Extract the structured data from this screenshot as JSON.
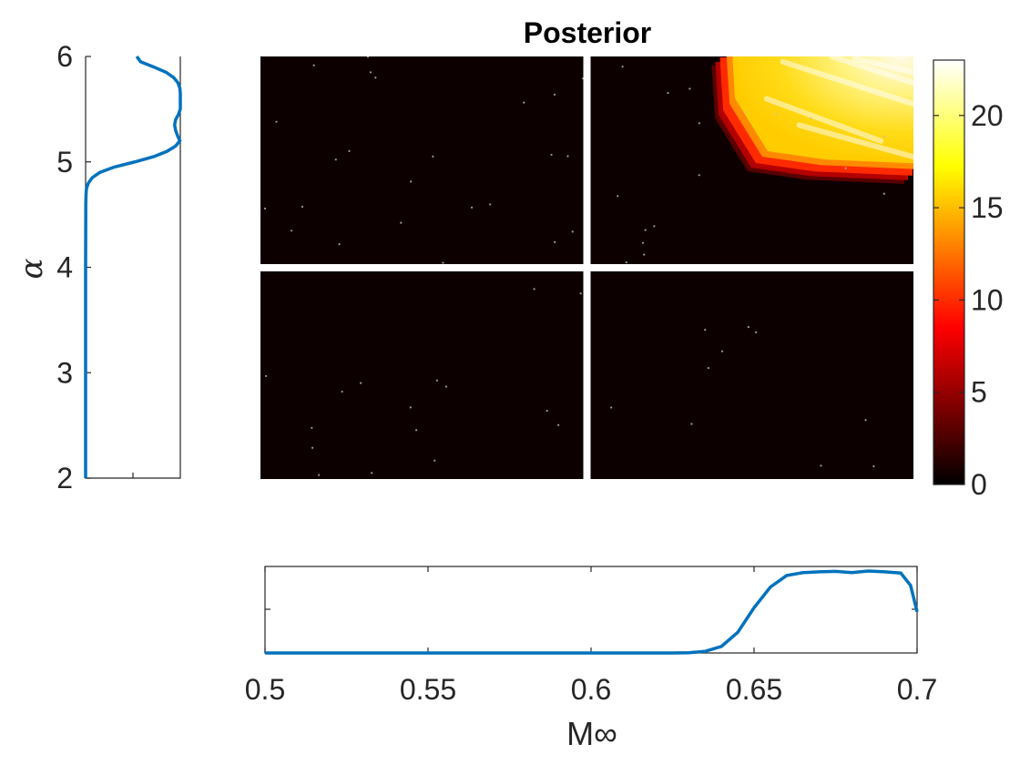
{
  "chart_data": [
    {
      "type": "heatmap",
      "title": "Posterior",
      "xlim": [
        0.5,
        0.7
      ],
      "ylim": [
        2,
        6
      ],
      "colormap": "hot",
      "colorbar": {
        "ticks": [
          0,
          5,
          10,
          15,
          20
        ],
        "tick_labels": [
          "0",
          "5",
          "10",
          "15",
          "20"
        ],
        "range": [
          0,
          23
        ]
      },
      "crosshair": {
        "x": 0.6,
        "y": 4
      },
      "high_region": {
        "description": "posterior mass concentrated in upper-right corner",
        "boundary": [
          [
            0.641,
            6.0
          ],
          [
            0.642,
            5.5
          ],
          [
            0.652,
            5.0
          ],
          [
            0.67,
            4.92
          ],
          [
            0.7,
            4.88
          ]
        ],
        "peak_value": 23
      },
      "background_value": 0
    },
    {
      "type": "line",
      "orientation": "vertical",
      "ylabel": "α",
      "yticks": [
        2,
        3,
        4,
        5,
        6
      ],
      "ytick_labels": [
        "2",
        "3",
        "4",
        "5",
        "6"
      ],
      "ylim": [
        2,
        6
      ],
      "xlim": [
        0,
        1
      ],
      "series": [
        {
          "color": "#0072BD",
          "y": [
            2.0,
            3.0,
            4.0,
            4.6,
            4.7,
            4.75,
            4.8,
            4.85,
            4.9,
            4.95,
            5.0,
            5.05,
            5.1,
            5.15,
            5.2,
            5.25,
            5.3,
            5.35,
            5.4,
            5.45,
            5.5,
            5.55,
            5.6,
            5.65,
            5.7,
            5.75,
            5.8,
            5.85,
            5.9,
            5.95,
            6.0
          ],
          "x": [
            0.0,
            0.0,
            0.0,
            0.002,
            0.005,
            0.01,
            0.03,
            0.07,
            0.15,
            0.3,
            0.52,
            0.72,
            0.86,
            0.95,
            0.995,
            0.97,
            0.95,
            0.94,
            0.95,
            0.98,
            1.0,
            1.0,
            1.0,
            1.0,
            0.995,
            0.975,
            0.93,
            0.85,
            0.72,
            0.58,
            0.54
          ]
        }
      ]
    },
    {
      "type": "line",
      "xlabel": "M∞",
      "xticks": [
        0.5,
        0.55,
        0.6,
        0.65,
        0.7
      ],
      "xtick_labels": [
        "0.5",
        "0.55",
        "0.6",
        "0.65",
        "0.7"
      ],
      "xlim": [
        0.5,
        0.7
      ],
      "ylim": [
        0,
        1.05
      ],
      "series": [
        {
          "color": "#0072BD",
          "x": [
            0.5,
            0.55,
            0.6,
            0.625,
            0.63,
            0.635,
            0.64,
            0.645,
            0.65,
            0.655,
            0.66,
            0.665,
            0.67,
            0.675,
            0.68,
            0.685,
            0.69,
            0.695,
            0.698,
            0.7
          ],
          "y": [
            0.0,
            0.0,
            0.0,
            0.0,
            0.003,
            0.02,
            0.08,
            0.25,
            0.55,
            0.8,
            0.94,
            0.975,
            0.985,
            0.99,
            0.975,
            0.995,
            0.985,
            0.97,
            0.82,
            0.5
          ]
        }
      ]
    }
  ]
}
